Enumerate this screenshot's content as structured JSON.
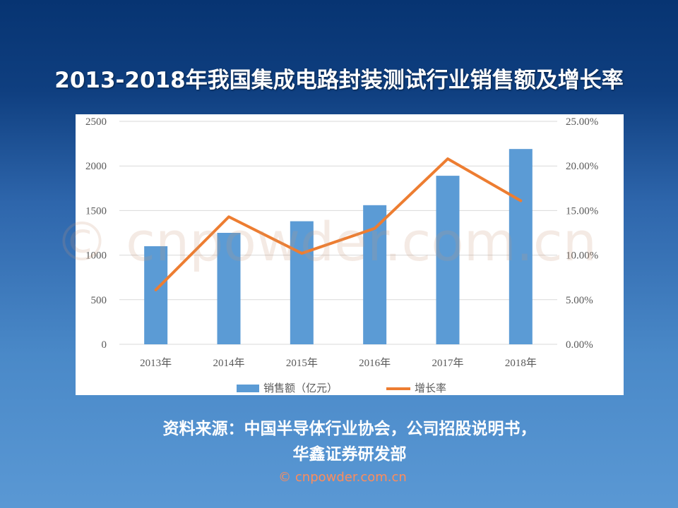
{
  "title": "2013-2018年我国集成电路封装测试行业销售额及增长率",
  "source_line1": "资料来源：中国半导体行业协会，公司招股说明书，",
  "source_line2": "华鑫证券研发部",
  "watermark_large": "© cnpowder.com.cn",
  "watermark_footer": "© cnpowder.com.cn",
  "colors": {
    "bar": "#5b9bd5",
    "line": "#ed7d31",
    "grid": "#d9d9d9",
    "tick": "#595959"
  },
  "chart_data": {
    "type": "bar+line",
    "categories": [
      "2013年",
      "2014年",
      "2015年",
      "2016年",
      "2017年",
      "2018年"
    ],
    "series": [
      {
        "name": "销售额（亿元）",
        "type": "bar",
        "axis": "left",
        "values": [
          1100,
          1250,
          1380,
          1560,
          1890,
          2190
        ]
      },
      {
        "name": "增长率",
        "type": "line",
        "axis": "right",
        "values": [
          6.1,
          14.3,
          10.2,
          13.0,
          20.8,
          16.1
        ]
      }
    ],
    "left_axis": {
      "ticks": [
        "0",
        "500",
        "1000",
        "1500",
        "2000",
        "2500"
      ],
      "range": [
        0,
        2500
      ]
    },
    "right_axis": {
      "ticks": [
        "0.00%",
        "5.00%",
        "10.00%",
        "15.00%",
        "20.00%",
        "25.00%"
      ],
      "range": [
        0,
        25
      ]
    },
    "grid": true,
    "legend_position": "bottom"
  }
}
